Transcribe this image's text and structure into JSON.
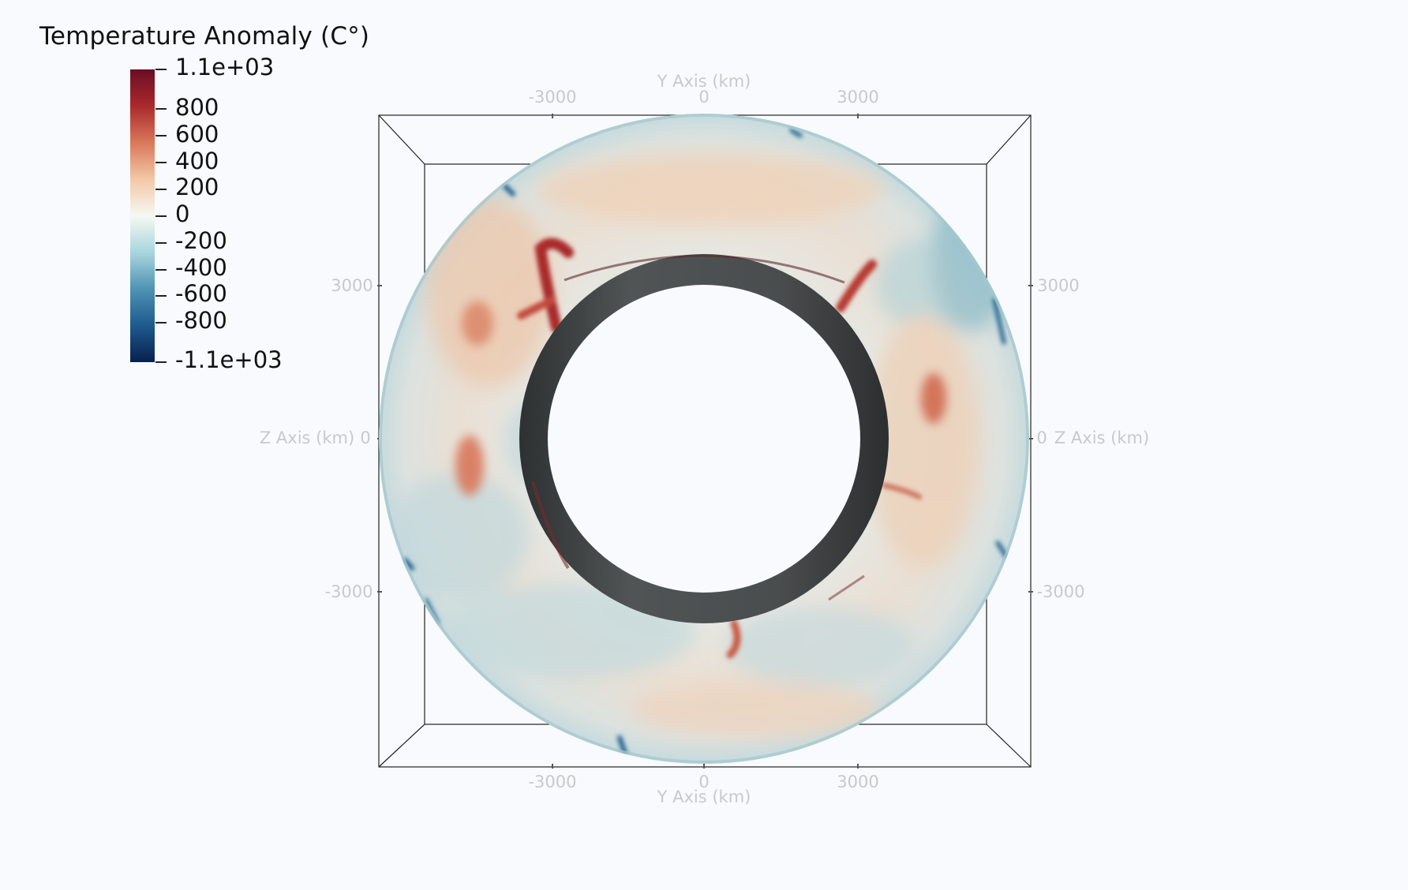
{
  "colorbar": {
    "title": "Temperature Anomaly (C°)",
    "max_label": "1.1e+03",
    "min_label": "-1.1e+03",
    "range": [
      -1100,
      1100
    ],
    "ticks": [
      {
        "label": "800",
        "value": 800
      },
      {
        "label": "600",
        "value": 600
      },
      {
        "label": "400",
        "value": 400
      },
      {
        "label": "200",
        "value": 200
      },
      {
        "label": "0",
        "value": 0
      },
      {
        "label": "-200",
        "value": -200
      },
      {
        "label": "-400",
        "value": -400
      },
      {
        "label": "-600",
        "value": -600
      },
      {
        "label": "-800",
        "value": -800
      }
    ],
    "colors": [
      "#08204f",
      "#1d5a8e",
      "#4f93b4",
      "#a8d6dd",
      "#f6f8f3",
      "#f3c8a6",
      "#d9785b",
      "#aa2a2c",
      "#6a0d24"
    ]
  },
  "axes": {
    "top": {
      "title": "Y Axis (km)",
      "ticks": [
        "-3000",
        "0",
        "3000"
      ]
    },
    "bottom": {
      "title": "Y Axis (km)",
      "ticks": [
        "-3000",
        "0",
        "3000"
      ]
    },
    "left": {
      "title": "Z Axis (km)",
      "ticks": [
        "3000",
        "0",
        "-3000"
      ]
    },
    "right": {
      "title": "Z Axis (km)",
      "ticks": [
        "3000",
        "0",
        "-3000"
      ]
    }
  },
  "colors": {
    "background": "#f9fafd",
    "axis_text": "#c9c9c9",
    "box_lines": "#222222",
    "inner_core": "#4b4d4d"
  }
}
